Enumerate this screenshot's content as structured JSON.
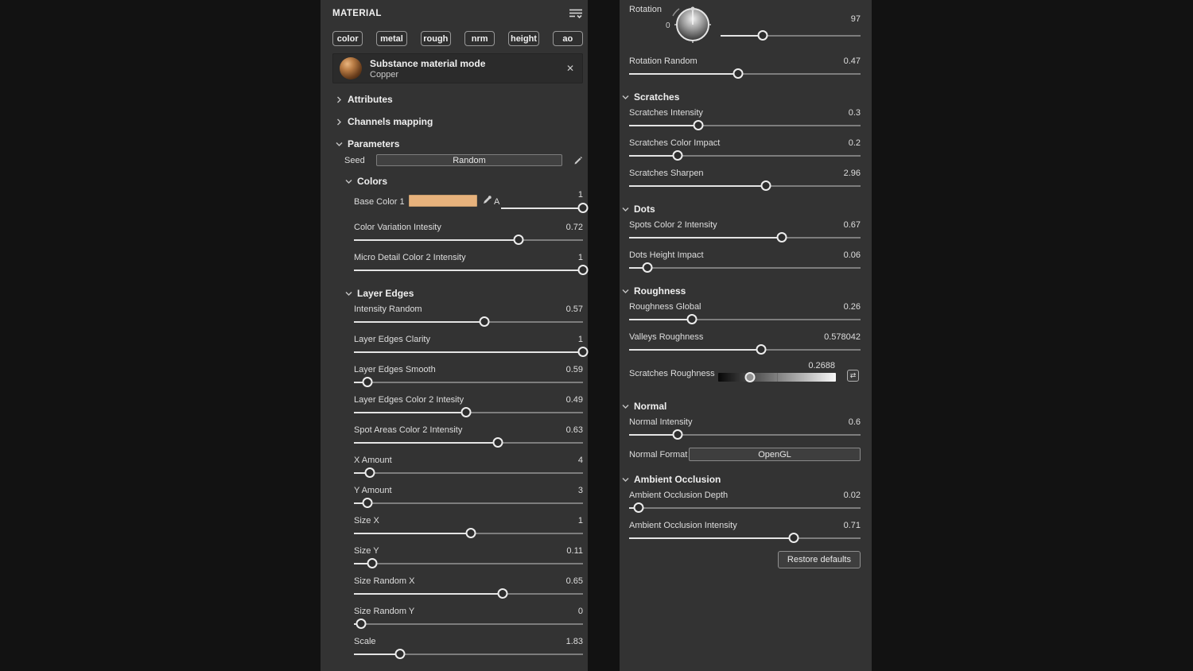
{
  "colors": {
    "background": "#121212",
    "panel": "#333333",
    "accent_copper_swatch": "#e7b27c",
    "slider_fill": "#e4e4e4",
    "slider_track": "#7d7d7d"
  },
  "material_panel": {
    "title": "MATERIAL",
    "channels": [
      "color",
      "metal",
      "rough",
      "nrm",
      "height",
      "ao"
    ],
    "card": {
      "title": "Substance material mode",
      "subtitle": "Copper",
      "close_glyph": "✕"
    },
    "collapsed_sections": [
      {
        "label": "Attributes"
      },
      {
        "label": "Channels mapping"
      }
    ],
    "parameters_label": "Parameters",
    "seed": {
      "label": "Seed",
      "value": "Random"
    },
    "groups": [
      {
        "title": "Colors",
        "params": [
          {
            "label": "Base Color 1",
            "value": "1",
            "type": "color",
            "alpha_label": "A",
            "pct": 100
          },
          {
            "label": "Color Variation Intesity",
            "value": "0.72",
            "pct": 72
          },
          {
            "label": "Micro Detail Color 2 Intensity",
            "value": "1",
            "pct": 100
          }
        ]
      },
      {
        "title": "Layer Edges",
        "params": [
          {
            "label": "Intensity Random",
            "value": "0.57",
            "pct": 57
          },
          {
            "label": "Layer Edges Clarity",
            "value": "1",
            "pct": 100
          },
          {
            "label": "Layer Edges Smooth",
            "value": "0.59",
            "pct": 6
          },
          {
            "label": "Layer Edges Color 2 Intesity",
            "value": "0.49",
            "pct": 49
          },
          {
            "label": "Spot Areas Color 2 Intensity",
            "value": "0.63",
            "pct": 63
          },
          {
            "label": "X Amount",
            "value": "4",
            "pct": 7
          },
          {
            "label": "Y Amount",
            "value": "3",
            "pct": 6
          },
          {
            "label": "Size X",
            "value": "1",
            "pct": 51
          },
          {
            "label": "Size Y",
            "value": "0.11",
            "pct": 8
          },
          {
            "label": "Size Random X",
            "value": "0.65",
            "pct": 65
          },
          {
            "label": "Size Random Y",
            "value": "0",
            "pct": 3
          },
          {
            "label": "Scale",
            "value": "1.83",
            "pct": 20
          }
        ]
      }
    ]
  },
  "params_panel": {
    "rotation": {
      "label": "Rotation",
      "value": "97",
      "dial_min_label": "0",
      "pct": 30
    },
    "rotation_random": {
      "label": "Rotation Random",
      "value": "0.47",
      "pct": 47
    },
    "groups": [
      {
        "title": "Scratches",
        "params": [
          {
            "label": "Scratches Intensity",
            "value": "0.3",
            "pct": 30
          },
          {
            "label": "Scratches Color Impact",
            "value": "0.2",
            "pct": 21
          },
          {
            "label": "Scratches Sharpen",
            "value": "2.96",
            "pct": 59
          }
        ]
      },
      {
        "title": "Dots",
        "params": [
          {
            "label": "Spots Color 2 Intensity",
            "value": "0.67",
            "pct": 66
          },
          {
            "label": "Dots Height Impact",
            "value": "0.06",
            "pct": 8
          }
        ]
      },
      {
        "title": "Roughness",
        "params": [
          {
            "label": "Roughness Global",
            "value": "0.26",
            "pct": 27
          },
          {
            "label": "Valleys Roughness",
            "value": "0.578042",
            "pct": 57
          },
          {
            "label": "Scratches Roughness",
            "value": "0.2688",
            "type": "gradient",
            "pct": 27,
            "swap_glyph": "⇄"
          }
        ]
      },
      {
        "title": "Normal",
        "params": [
          {
            "label": "Normal Intensity",
            "value": "0.6",
            "pct": 21
          },
          {
            "label": "Normal Format",
            "value": "OpenGL",
            "type": "button"
          }
        ]
      },
      {
        "title": "Ambient Occlusion",
        "params": [
          {
            "label": "Ambient Occlusion Depth",
            "value": "0.02",
            "pct": 4
          },
          {
            "label": "Ambient Occlusion Intensity",
            "value": "0.71",
            "pct": 71
          }
        ]
      }
    ],
    "restore_label": "Restore defaults"
  }
}
